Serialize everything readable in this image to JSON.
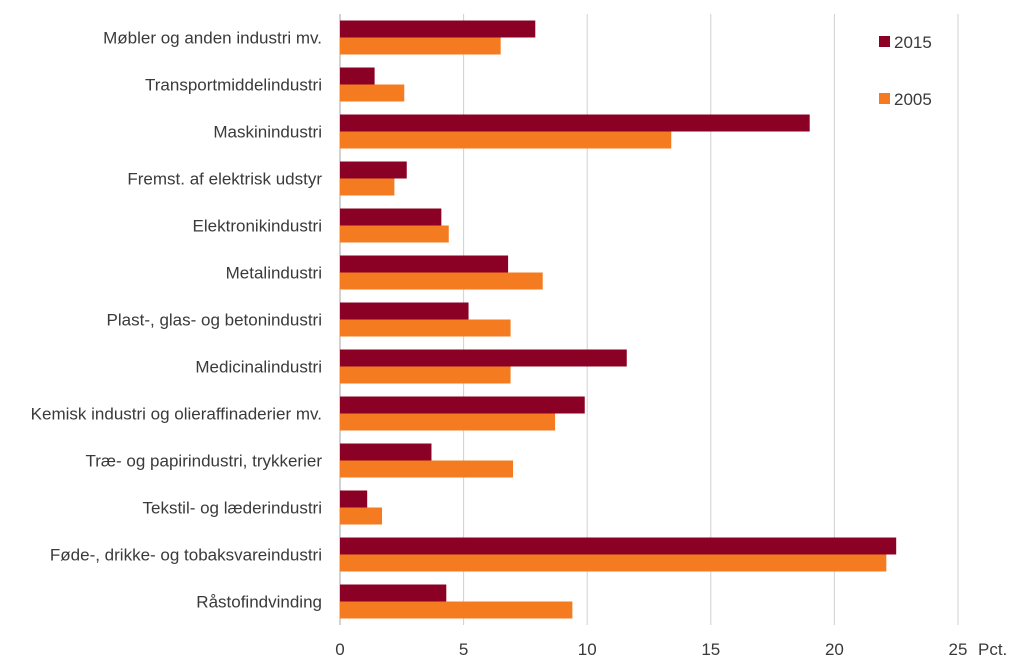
{
  "chart_data": {
    "type": "bar",
    "orientation": "horizontal",
    "title": "",
    "xlabel": "",
    "ylabel": "",
    "x_unit_label": "Pct.",
    "xlim": [
      0,
      25
    ],
    "xticks": [
      0,
      5,
      10,
      15,
      20,
      25
    ],
    "grid": true,
    "legend_position": "top-right",
    "categories": [
      "Møbler og anden industri mv.",
      "Transportmiddelindustri",
      "Maskinindustri",
      "Fremst. af elektrisk udstyr",
      "Elektronikindustri",
      "Metalindustri",
      "Plast-, glas- og betonindustri",
      "Medicinalindustri",
      "Kemisk industri og olieraffinaderier mv.",
      "Træ- og papirindustri, trykkerier",
      "Tekstil- og læderindustri",
      "Føde-, drikke- og tobaksvareindustri",
      "Råstofindvinding"
    ],
    "series": [
      {
        "name": "2015",
        "color": "#8b0025",
        "values": [
          7.9,
          1.4,
          19.0,
          2.7,
          4.1,
          6.8,
          5.2,
          11.6,
          9.9,
          3.7,
          1.1,
          22.5,
          4.3
        ]
      },
      {
        "name": "2005",
        "color": "#f47b20",
        "values": [
          6.5,
          2.6,
          13.4,
          2.2,
          4.4,
          8.2,
          6.9,
          6.9,
          8.7,
          7.0,
          1.7,
          22.1,
          9.4
        ]
      }
    ]
  }
}
